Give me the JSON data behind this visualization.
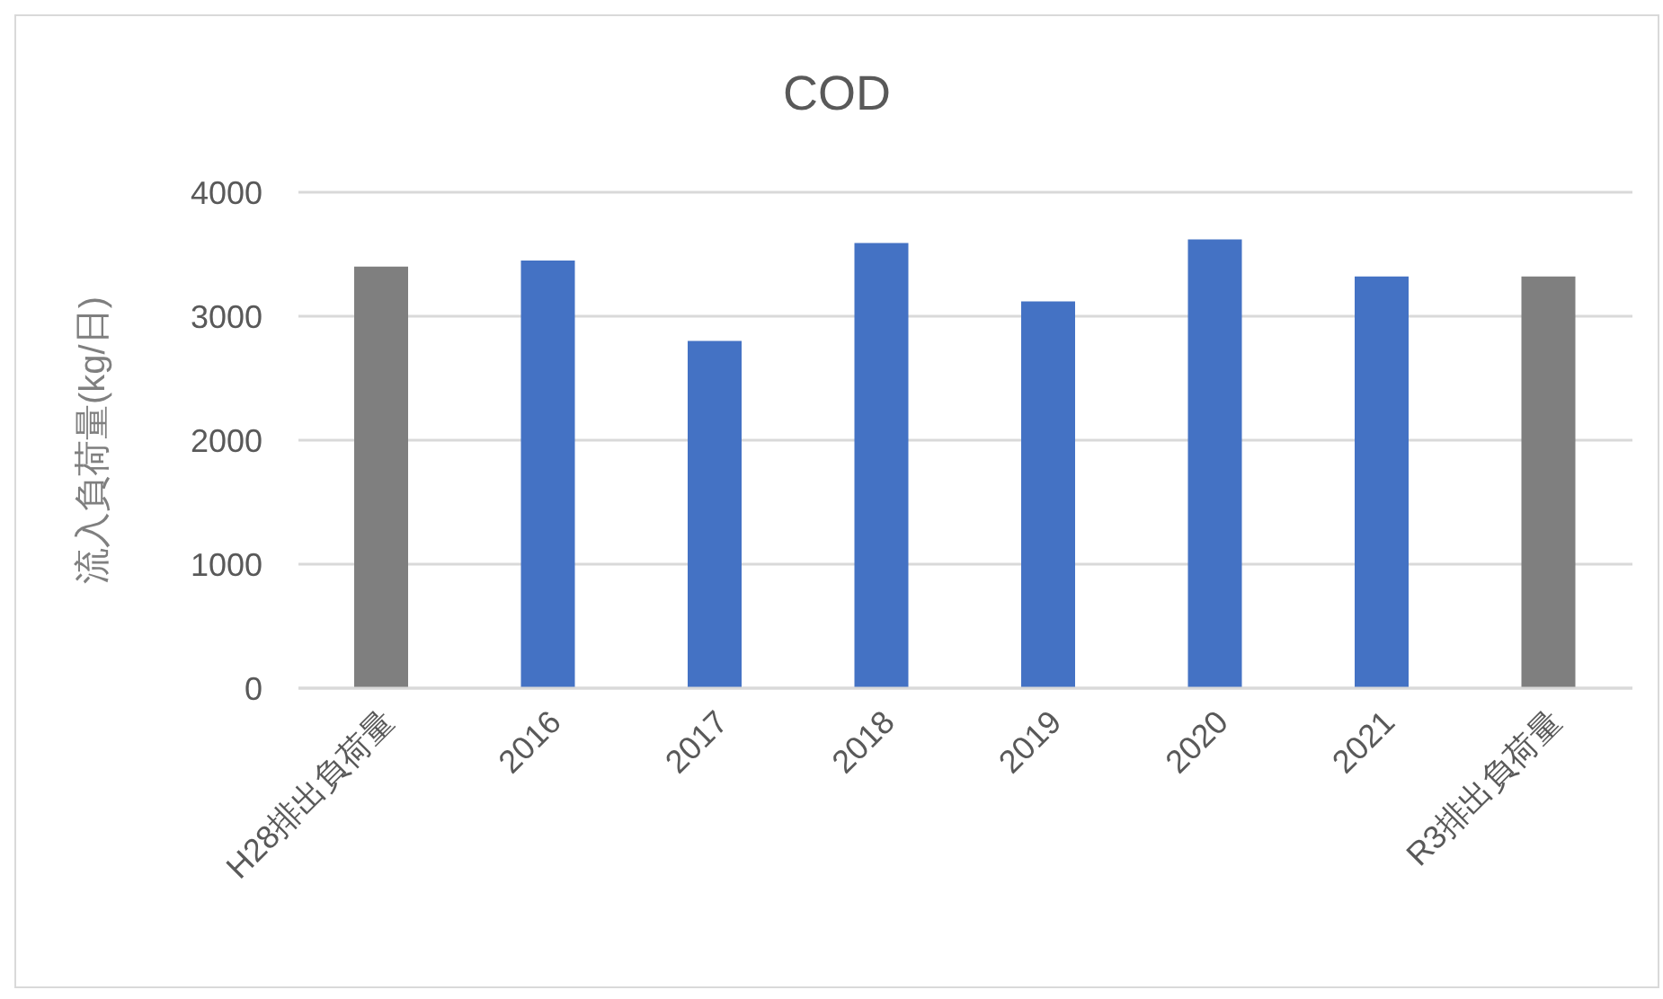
{
  "chart_data": {
    "type": "bar",
    "title": "COD",
    "ylabel": "流入負荷量(kg/日)",
    "categories": [
      "H28排出負荷量",
      "2016",
      "2017",
      "2018",
      "2019",
      "2020",
      "2021",
      "R3排出負荷量"
    ],
    "values": [
      3400,
      3450,
      2800,
      3590,
      3120,
      3620,
      3320,
      3320
    ],
    "colors": [
      "#7f7f7f",
      "#4472c4",
      "#4472c4",
      "#4472c4",
      "#4472c4",
      "#4472c4",
      "#4472c4",
      "#7f7f7f"
    ],
    "ylim": [
      0,
      4000
    ],
    "yticks": [
      0,
      1000,
      2000,
      3000,
      4000
    ],
    "grid": "y"
  }
}
